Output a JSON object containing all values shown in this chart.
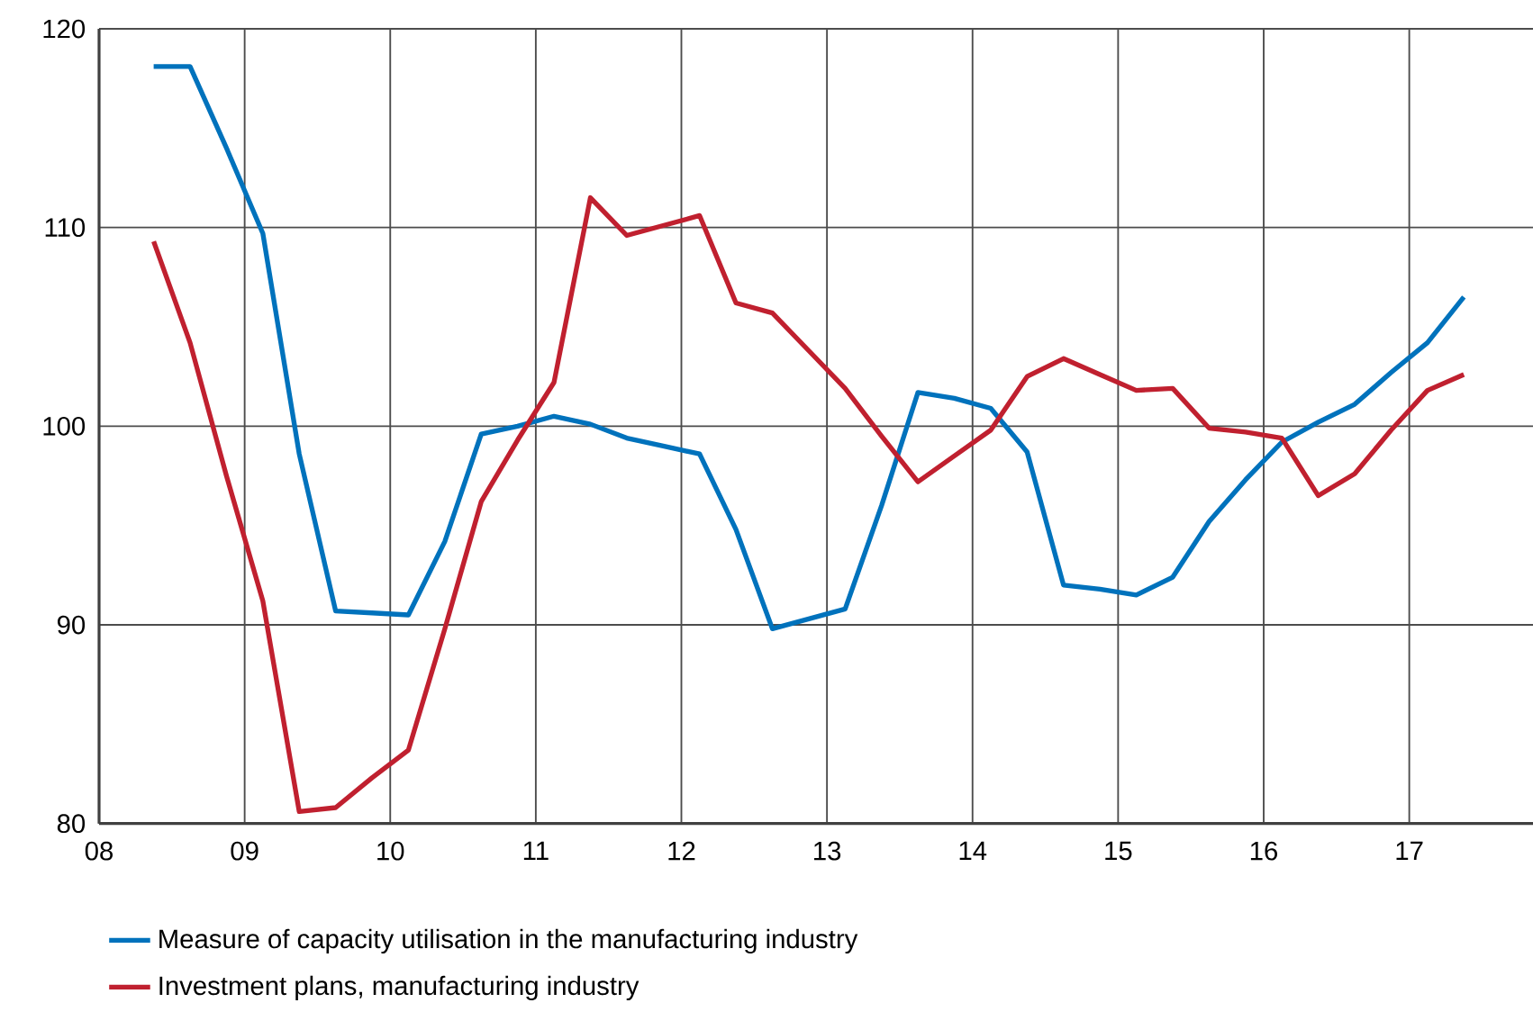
{
  "chart_data": {
    "type": "line",
    "x": [
      8.375,
      8.625,
      8.875,
      9.125,
      9.375,
      9.625,
      9.875,
      10.125,
      10.375,
      10.625,
      10.875,
      11.125,
      11.375,
      11.625,
      11.875,
      12.125,
      12.375,
      12.625,
      12.875,
      13.125,
      13.375,
      13.625,
      13.875,
      14.125,
      14.375,
      14.625,
      14.875,
      15.125,
      15.375,
      15.625,
      15.875,
      16.125,
      16.375,
      16.625,
      16.875,
      17.125,
      17.375
    ],
    "series": [
      {
        "name": "Measure of capacity utilisation in the manufacturing industry",
        "color": "#0072bc",
        "values": [
          118.1,
          118.1,
          114.0,
          109.7,
          98.6,
          90.7,
          90.6,
          90.5,
          94.2,
          99.6,
          100.0,
          100.5,
          100.1,
          99.4,
          99.0,
          98.6,
          94.8,
          89.8,
          90.3,
          90.8,
          96.0,
          101.7,
          101.4,
          100.9,
          98.7,
          92.0,
          91.8,
          91.5,
          92.4,
          95.2,
          97.3,
          99.2,
          100.2,
          101.1,
          102.7,
          104.2,
          106.5
        ]
      },
      {
        "name": "Investment plans, manufacturing industry",
        "color": "#c0202f",
        "values": [
          109.3,
          104.2,
          97.5,
          91.2,
          80.6,
          80.8,
          82.3,
          83.7,
          89.8,
          96.2,
          99.3,
          102.2,
          111.5,
          109.6,
          110.1,
          110.6,
          106.2,
          105.7,
          103.8,
          101.9,
          99.5,
          97.2,
          98.5,
          99.8,
          102.5,
          103.4,
          102.6,
          101.8,
          101.9,
          99.9,
          99.7,
          99.4,
          96.5,
          97.6,
          99.8,
          101.8,
          102.6
        ]
      }
    ],
    "xlim": [
      8,
      17.85
    ],
    "xticks": [
      {
        "value": 8,
        "label": "08"
      },
      {
        "value": 9,
        "label": "09"
      },
      {
        "value": 10,
        "label": "10"
      },
      {
        "value": 11,
        "label": "11"
      },
      {
        "value": 12,
        "label": "12"
      },
      {
        "value": 13,
        "label": "13"
      },
      {
        "value": 14,
        "label": "14"
      },
      {
        "value": 15,
        "label": "15"
      },
      {
        "value": 16,
        "label": "16"
      },
      {
        "value": 17,
        "label": "17"
      }
    ],
    "ylim": [
      80,
      120
    ],
    "yticks": [
      80,
      90,
      100,
      110,
      120
    ],
    "grid": true,
    "legend": "bottom",
    "marker": "none",
    "line_style": "solid"
  }
}
